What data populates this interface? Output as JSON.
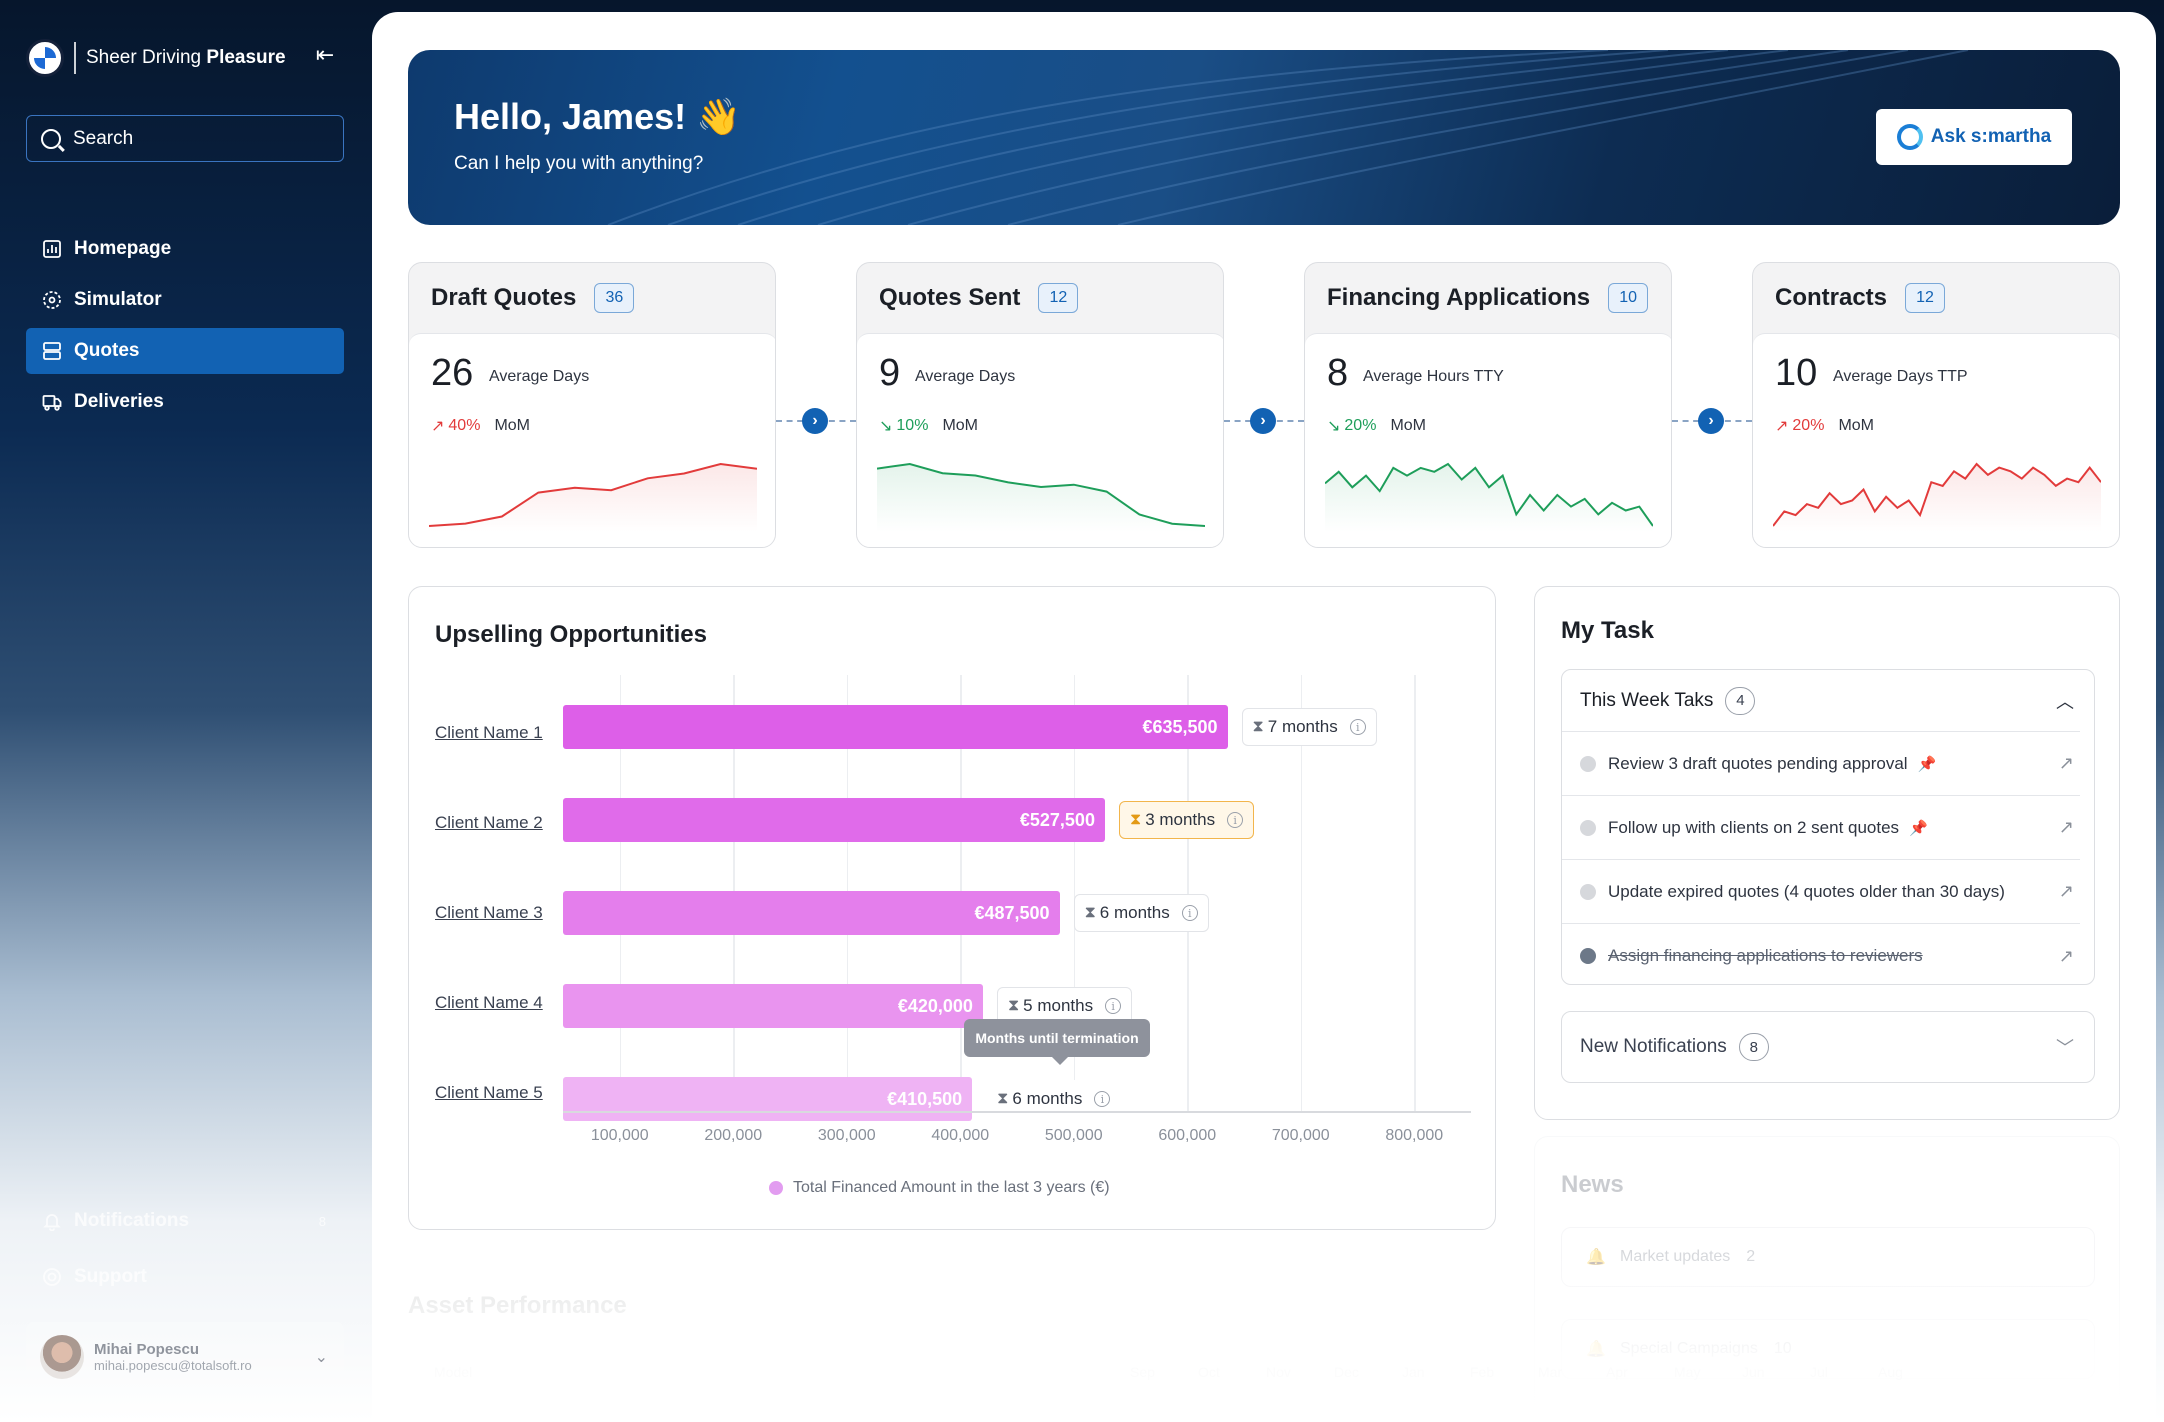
{
  "brand": {
    "tagline_regular": "Sheer Driving",
    "tagline_bold": "Pleasure"
  },
  "search": {
    "placeholder": "Search"
  },
  "nav": [
    {
      "label": "Homepage",
      "icon": "chart-icon",
      "active": false
    },
    {
      "label": "Simulator",
      "icon": "simulator-icon",
      "active": false
    },
    {
      "label": "Quotes",
      "icon": "quotes-icon",
      "active": true
    },
    {
      "label": "Deliveries",
      "icon": "truck-icon",
      "active": false
    }
  ],
  "sidebar_bottom": {
    "notifications_label": "Notifications",
    "notifications_count": "8",
    "support_label": "Support"
  },
  "user": {
    "name": "Mihai Popescu",
    "email": "mihai.popescu@totalsoft.ro"
  },
  "hero": {
    "greeting": "Hello, James! 👋",
    "subtitle": "Can I help you with anything?",
    "ask_label": "Ask s:martha"
  },
  "kpis": [
    {
      "title": "Draft Quotes",
      "count": "36",
      "value": "26",
      "label": "Average Days",
      "trend": "40%",
      "trend_dir": "up",
      "mom": "MoM",
      "color": "#e23b3b",
      "spark": [
        2,
        2.5,
        4,
        9,
        10,
        9.5,
        12,
        13,
        15,
        14
      ]
    },
    {
      "title": "Quotes Sent",
      "count": "12",
      "value": "9",
      "label": "Average Days",
      "trend": "10%",
      "trend_dir": "down",
      "mom": "MoM",
      "color": "#1e9e5a",
      "spark": [
        15,
        16,
        14,
        13.5,
        12,
        11,
        11.5,
        10,
        5,
        3,
        2.5
      ]
    },
    {
      "title": "Financing Applications",
      "count": "10",
      "value": "8",
      "label": "Average Hours TTY",
      "trend": "20%",
      "trend_dir": "down",
      "mom": "MoM",
      "color": "#1e9e5a",
      "spark": [
        12,
        15,
        11,
        14,
        10,
        16,
        14,
        16,
        15,
        17,
        13,
        16,
        11,
        14,
        4,
        9,
        5,
        9,
        6,
        8,
        4,
        7,
        5,
        6,
        1
      ]
    },
    {
      "title": "Contracts",
      "count": "12",
      "value": "10",
      "label": "Average Days TTP",
      "trend": "20%",
      "trend_dir": "up",
      "mom": "MoM",
      "color": "#e23b3b",
      "spark": [
        2,
        6,
        5,
        8,
        7,
        11,
        8,
        9,
        12,
        6,
        10,
        7,
        9,
        5,
        14,
        13,
        17,
        15,
        19,
        16,
        18,
        17,
        15,
        18,
        16,
        13,
        15,
        14,
        18,
        14
      ]
    }
  ],
  "upsell": {
    "title": "Upselling Opportunities",
    "clients": [
      {
        "name": "Client Name 1",
        "value": 635500,
        "value_label": "€635,500",
        "months": "7 months",
        "warn": false,
        "color": "#dd5fe8"
      },
      {
        "name": "Client Name 2",
        "value": 527500,
        "value_label": "€527,500",
        "months": "3 months",
        "warn": true,
        "color": "#e06bea"
      },
      {
        "name": "Client Name 3",
        "value": 487500,
        "value_label": "€487,500",
        "months": "6 months",
        "warn": false,
        "color": "#e47eec"
      },
      {
        "name": "Client Name 4",
        "value": 420000,
        "value_label": "€420,000",
        "months": "5 months",
        "warn": false,
        "color": "#e994ef"
      },
      {
        "name": "Client Name 5",
        "value": 410500,
        "value_label": "€410,500",
        "months": "6 months",
        "warn": false,
        "color": "#efb3f4"
      }
    ],
    "ticks": [
      "100,000",
      "200,000",
      "300,000",
      "400,000",
      "500,000",
      "600,000",
      "700,000",
      "800,000"
    ],
    "legend": "Total Financed Amount in the last 3 years (€)",
    "tooltip": "Months until termination"
  },
  "tasks": {
    "title": "My Task",
    "week_label": "This Week Taks",
    "week_count": "4",
    "items": [
      {
        "text": "Review 3 draft quotes pending approval",
        "pinned": true,
        "done": false
      },
      {
        "text": "Follow up with clients on 2 sent quotes",
        "pinned": true,
        "done": false
      },
      {
        "text": "Update expired quotes (4 quotes older than 30 days)",
        "pinned": false,
        "done": false
      },
      {
        "text": "Assign financing applications to reviewers",
        "pinned": false,
        "done": true
      }
    ],
    "notif_label": "New Notifications",
    "notif_count": "8"
  },
  "news": {
    "title": "News",
    "items": [
      {
        "label": "Market updates",
        "count": "2"
      },
      {
        "label": "Special Campaigns",
        "count": "10"
      }
    ]
  },
  "asset": {
    "title": "Asset Performance",
    "model_label": "Model",
    "months": [
      "Sep",
      "Oct",
      "Nov",
      "Dec",
      "Jan",
      "Feb",
      "Mar",
      "Apr",
      "May",
      "Jun",
      "Jul",
      "Aug"
    ]
  }
}
